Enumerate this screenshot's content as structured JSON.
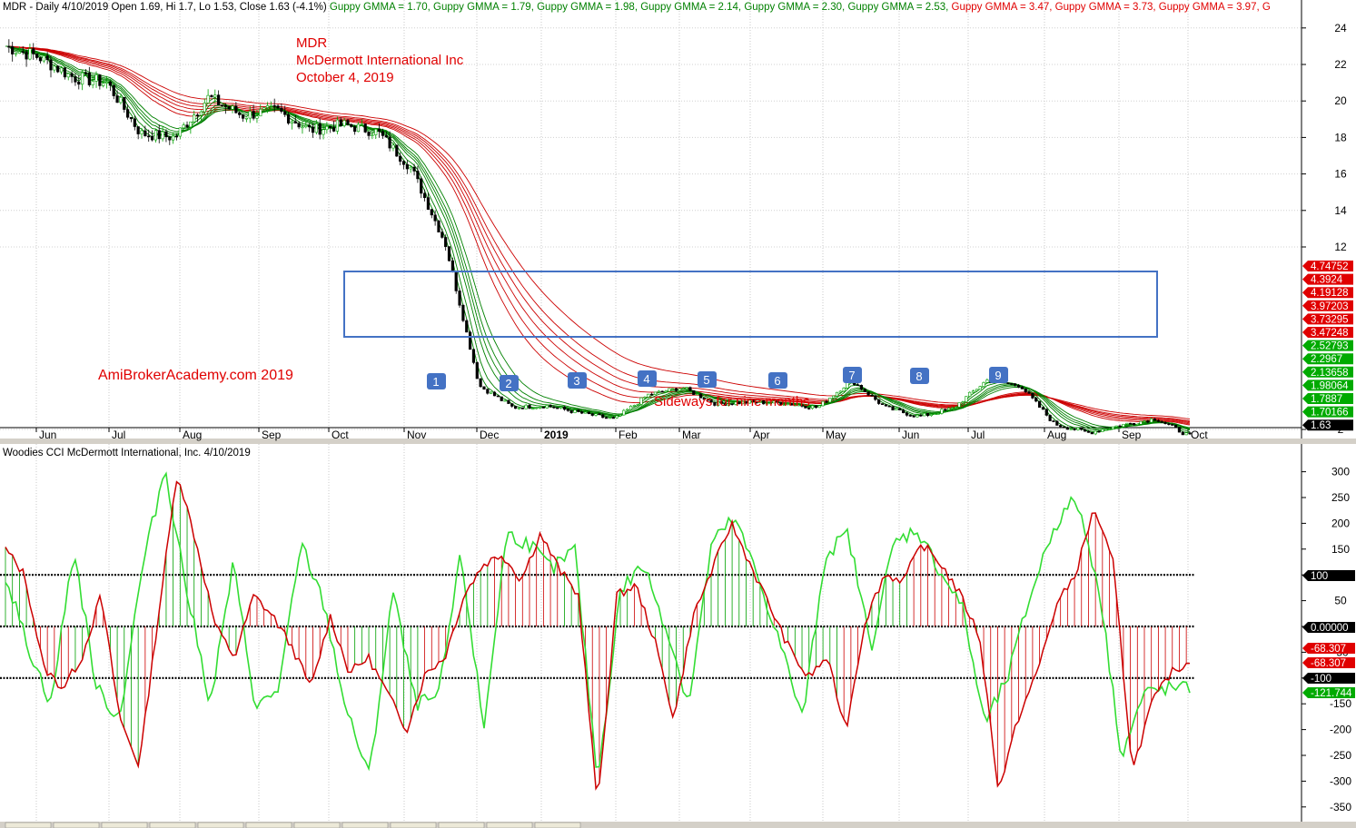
{
  "chart_data": [
    {
      "type": "candlestick",
      "title": "MDR - Daily 4/10/2019 Open 1.69, Hi 1.7, Lo 1.53, Close 1.63 (-4.1%)",
      "header_items": [
        {
          "text": "Guppy GMMA = 1.70,",
          "color": "#008000"
        },
        {
          "text": "Guppy GMMA = 1.79,",
          "color": "#008000"
        },
        {
          "text": "Guppy GMMA = 1.98,",
          "color": "#008000"
        },
        {
          "text": "Guppy GMMA = 2.14,",
          "color": "#008000"
        },
        {
          "text": "Guppy GMMA = 2.30,",
          "color": "#008000"
        },
        {
          "text": "Guppy GMMA = 2.53,",
          "color": "#008000"
        },
        {
          "text": "Guppy GMMA = 3.47,",
          "color": "#e00000"
        },
        {
          "text": "Guppy GMMA = 3.73,",
          "color": "#e00000"
        },
        {
          "text": "Guppy GMMA = 3.97,",
          "color": "#e00000"
        },
        {
          "text": "G",
          "color": "#e00000"
        }
      ],
      "annotation_lines": [
        "MDR",
        "McDermott International Inc",
        "October 4, 2019"
      ],
      "watermark": "AmiBrokerAcademy.com    2019",
      "sideways_note": "Sideways for nine months",
      "markers": [
        "1",
        "2",
        "3",
        "4",
        "5",
        "6",
        "7",
        "8",
        "9"
      ],
      "x_tick_labels": [
        "Jun",
        "Jul",
        "Aug",
        "Sep",
        "Oct",
        "Nov",
        "Dec",
        "2019",
        "Feb",
        "Mar",
        "Apr",
        "May",
        "Jun",
        "Jul",
        "Aug",
        "Sep",
        "Oct"
      ],
      "y_ticks": [
        24,
        22,
        20,
        18,
        16,
        14,
        12,
        2
      ],
      "price_knots": [
        23.0,
        22.4,
        21.3,
        21.0,
        18.2,
        18.0,
        20.2,
        19.2,
        19.5,
        18.4,
        18.7,
        18.3,
        16.3,
        12.2,
        4.4,
        3.2,
        3.3,
        2.9,
        2.55,
        3.9,
        4.3,
        3.4,
        3.5,
        3.45,
        3.2,
        4.7,
        3.2,
        2.7,
        3.15,
        4.7,
        4.4,
        2.3,
        1.82,
        2.25,
        2.6,
        1.63
      ],
      "guppy_short": [
        1.7,
        1.79,
        1.98,
        2.14,
        2.3,
        2.53
      ],
      "guppy_long": [
        3.47,
        3.73,
        3.97,
        4.19128,
        4.3924,
        4.74752
      ],
      "axis_price_labels": [
        {
          "text": "4.74752",
          "value": 4.74752,
          "bg": "#e00000"
        },
        {
          "text": "4.3924",
          "value": 4.3924,
          "bg": "#e00000"
        },
        {
          "text": "4.19128",
          "value": 4.19128,
          "bg": "#e00000"
        },
        {
          "text": "3.97203",
          "value": 3.97203,
          "bg": "#e00000"
        },
        {
          "text": "3.73295",
          "value": 3.73295,
          "bg": "#e00000"
        },
        {
          "text": "3.47248",
          "value": 3.47248,
          "bg": "#e00000"
        },
        {
          "text": "2.52793",
          "value": 2.52793,
          "bg": "#00aa00"
        },
        {
          "text": "2.2967",
          "value": 2.2967,
          "bg": "#00aa00"
        },
        {
          "text": "2.13658",
          "value": 2.13658,
          "bg": "#00aa00"
        },
        {
          "text": "1.98064",
          "value": 1.98064,
          "bg": "#00aa00"
        },
        {
          "text": "1.7887",
          "value": 1.7887,
          "bg": "#00aa00"
        },
        {
          "text": "1.70166",
          "value": 1.70166,
          "bg": "#00aa00"
        },
        {
          "text": "1.63",
          "value": 1.63,
          "bg": "#000000"
        }
      ]
    },
    {
      "type": "line",
      "title": "Woodies CCI  McDermott International, Inc. 4/10/2019",
      "y_ticks": [
        300,
        250,
        200,
        150,
        100,
        50,
        0,
        -50,
        -100,
        -150,
        -200,
        -250,
        -300,
        -350
      ],
      "ylim": [
        -360,
        320
      ],
      "reference_lines": [
        100,
        0,
        -100
      ],
      "cci_knots": [
        150,
        100,
        -80,
        -120,
        -60,
        60,
        -180,
        -270,
        20,
        300,
        160,
        0,
        -60,
        60,
        20,
        -40,
        -120,
        20,
        -90,
        -60,
        -130,
        -200,
        -90,
        -60,
        60,
        120,
        140,
        90,
        180,
        110,
        60,
        -350,
        60,
        80,
        -30,
        -180,
        20,
        110,
        200,
        120,
        40,
        -40,
        -100,
        -60,
        -200,
        10,
        100,
        90,
        160,
        120,
        60,
        -20,
        -320,
        -180,
        -90,
        40,
        100,
        230,
        120,
        -280,
        -150,
        -90,
        -68.3
      ],
      "turbo_knots": [
        100,
        -40,
        -150,
        150,
        -120,
        -180,
        110,
        310,
        60,
        -150,
        120,
        -160,
        -120,
        160,
        40,
        -170,
        -290,
        70,
        -150,
        -140,
        140,
        -200,
        180,
        160,
        110,
        150,
        -300,
        70,
        120,
        0,
        -150,
        160,
        210,
        100,
        -30,
        -180,
        140,
        180,
        -40,
        160,
        190,
        110,
        40,
        -190,
        -100,
        60,
        190,
        250,
        80,
        -250,
        -130,
        -120,
        -121.744
      ],
      "axis_labels": [
        {
          "text": "100",
          "value": 100,
          "bg": "#000000"
        },
        {
          "text": "0.00000",
          "value": 0,
          "bg": "#000000"
        },
        {
          "text": "-68.307",
          "value": -68.307,
          "bg": "#e00000"
        },
        {
          "text": "-68.307",
          "value": -68.307,
          "bg": "#e00000"
        },
        {
          "text": "-100",
          "value": -100,
          "bg": "#000000"
        },
        {
          "text": "-121.744",
          "value": -121.744,
          "bg": "#00aa00"
        }
      ]
    }
  ],
  "colors": {
    "up_candle": "#00a000",
    "down_candle": "#000000",
    "guppy_short": "#008000",
    "guppy_long": "#cc0000",
    "annotation": "#e00000",
    "box": "#4472c4",
    "marker_bg": "#4472c4",
    "cci": "#cc0000",
    "turbo": "#33dd33",
    "hist_pos": "#00a000",
    "hist_neg": "#cc0000"
  }
}
